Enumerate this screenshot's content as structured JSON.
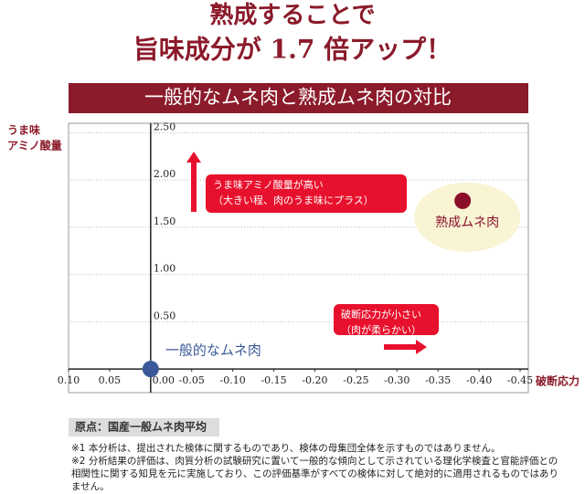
{
  "chart_data": {
    "type": "scatter",
    "title_lines": [
      "熟成することで",
      "旨味成分が 1.7 倍アップ！"
    ],
    "subtitle": "一般的なムネ肉と熟成ムネ肉の対比",
    "y_label_lines": [
      "うま味",
      "アミノ酸量"
    ],
    "x_label": "破断応力",
    "series": [
      {
        "name": "一般的なムネ肉",
        "color": "#3b5998",
        "x": [
          0
        ],
        "values": [
          0
        ]
      },
      {
        "name": "熟成ムネ肉",
        "color": "#8b0f2a",
        "x": [
          -0.38
        ],
        "values": [
          1.78
        ]
      }
    ],
    "xlim": [
      0.1,
      -0.46
    ],
    "ylim": [
      -0.25,
      2.6
    ],
    "xticks": [
      {
        "value": 0.1,
        "label": "0.10"
      },
      0.05,
      {
        "value": 0,
        "label": "0.00"
      },
      -0.05,
      {
        "value": -0.1,
        "label": "-0.10"
      },
      -0.15,
      {
        "value": -0.2,
        "label": "-0.20"
      },
      -0.25,
      {
        "value": -0.3,
        "label": "-0.30"
      },
      -0.35,
      {
        "value": -0.4,
        "label": "-0.40"
      },
      -0.45
    ],
    "yticks": [
      {
        "value": 2.5,
        "label": "2.50"
      },
      {
        "value": 2,
        "label": "2.00"
      },
      {
        "value": 1.5,
        "label": "1.50"
      },
      {
        "value": 1,
        "label": "1.00"
      },
      {
        "value": 0.5,
        "label": "0.50"
      }
    ],
    "grid": true,
    "annotations": [
      {
        "lines": [
          "うま味アミノ酸量が高い",
          "（大きい程、肉のうま味にプラス）"
        ]
      },
      {
        "lines": [
          "破断応力が小さい",
          "（肉が柔らかい）"
        ]
      }
    ],
    "origin_note": "原点：国産一般ムネ肉平均",
    "footnotes": [
      "※1 本分析は、提出された検体に関するものであり、検体の母集団全体を示すものではありません。",
      "※2 分析結果の評価は、肉質分析の試験研究に置いて一般的な傾向として示されている理化学検査と官能評価との相関性に関する知見を元に実施しており、この評価基準がすべての検体に対して絶対的に適用されるものではありません。"
    ]
  }
}
